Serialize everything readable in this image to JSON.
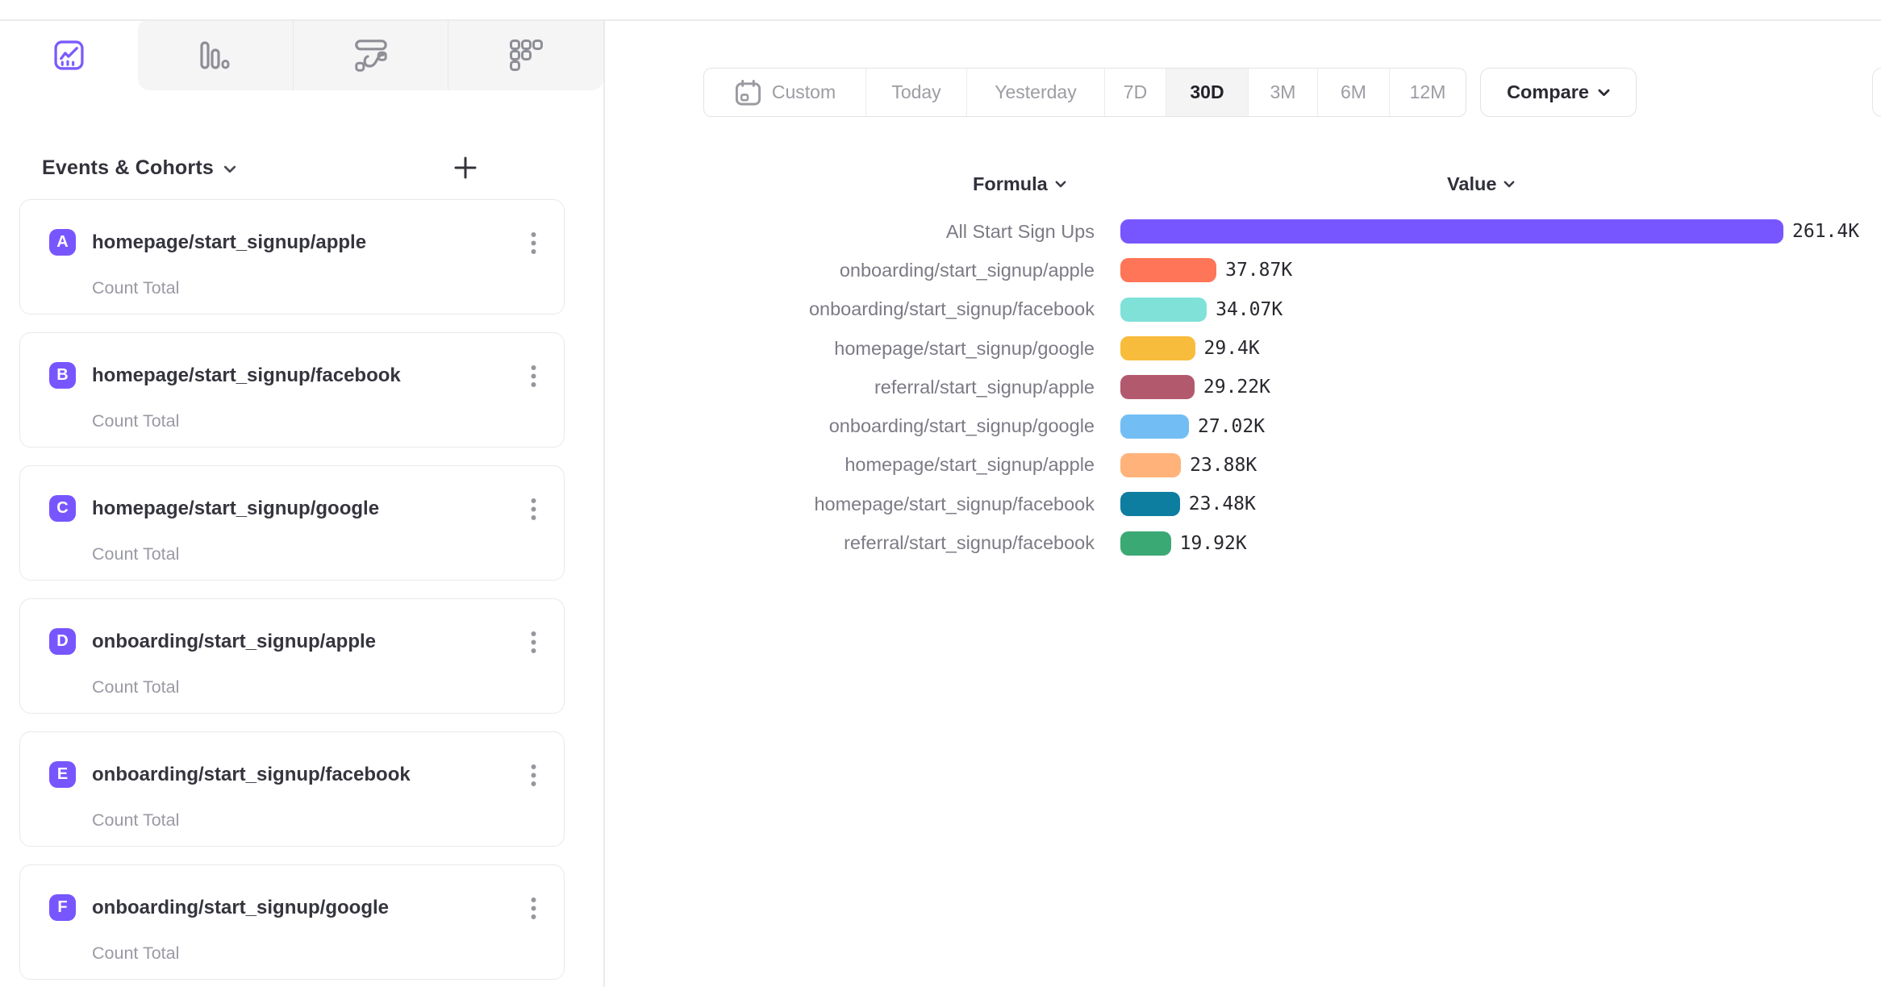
{
  "view_tabs": {
    "items": [
      {
        "icon": "insights-line-chart-icon",
        "active": true
      },
      {
        "icon": "bar-chart-icon",
        "active": false
      },
      {
        "icon": "flows-icon",
        "active": false
      },
      {
        "icon": "retention-grid-icon",
        "active": false
      }
    ],
    "accent_color": "#7856FF"
  },
  "sidebar": {
    "heading": "Events & Cohorts",
    "badge_color": "#7856FF",
    "events": [
      {
        "badge": "A",
        "name": "homepage/start_signup/apple",
        "metric": "Count Total"
      },
      {
        "badge": "B",
        "name": "homepage/start_signup/facebook",
        "metric": "Count Total"
      },
      {
        "badge": "C",
        "name": "homepage/start_signup/google",
        "metric": "Count Total"
      },
      {
        "badge": "D",
        "name": "onboarding/start_signup/apple",
        "metric": "Count Total"
      },
      {
        "badge": "E",
        "name": "onboarding/start_signup/facebook",
        "metric": "Count Total"
      },
      {
        "badge": "F",
        "name": "onboarding/start_signup/google",
        "metric": "Count Total"
      }
    ]
  },
  "date_controls": {
    "options": [
      "Custom",
      "Today",
      "Yesterday",
      "7D",
      "30D",
      "3M",
      "6M",
      "12M"
    ],
    "selected": "30D",
    "compare_label": "Compare"
  },
  "chart_data": {
    "type": "bar",
    "orientation": "horizontal",
    "column_headers": {
      "formula": "Formula",
      "value": "Value"
    },
    "categories": [
      "All Start Sign Ups",
      "onboarding/start_signup/apple",
      "onboarding/start_signup/facebook",
      "homepage/start_signup/google",
      "referral/start_signup/apple",
      "onboarding/start_signup/google",
      "homepage/start_signup/apple",
      "homepage/start_signup/facebook",
      "referral/start_signup/facebook"
    ],
    "values": [
      261400,
      37870,
      34070,
      29400,
      29220,
      27020,
      23880,
      23480,
      19920
    ],
    "value_labels": [
      "261.4K",
      "37.87K",
      "34.07K",
      "29.4K",
      "29.22K",
      "27.02K",
      "23.88K",
      "23.48K",
      "19.92K"
    ],
    "colors": [
      "#7856FF",
      "#FF7557",
      "#80E1D9",
      "#F8BC3C",
      "#B2596E",
      "#72BEF4",
      "#FFB27A",
      "#0D7EA0",
      "#3BA974"
    ],
    "xlim": [
      0,
      261400
    ],
    "grid": false,
    "legend": "none"
  }
}
